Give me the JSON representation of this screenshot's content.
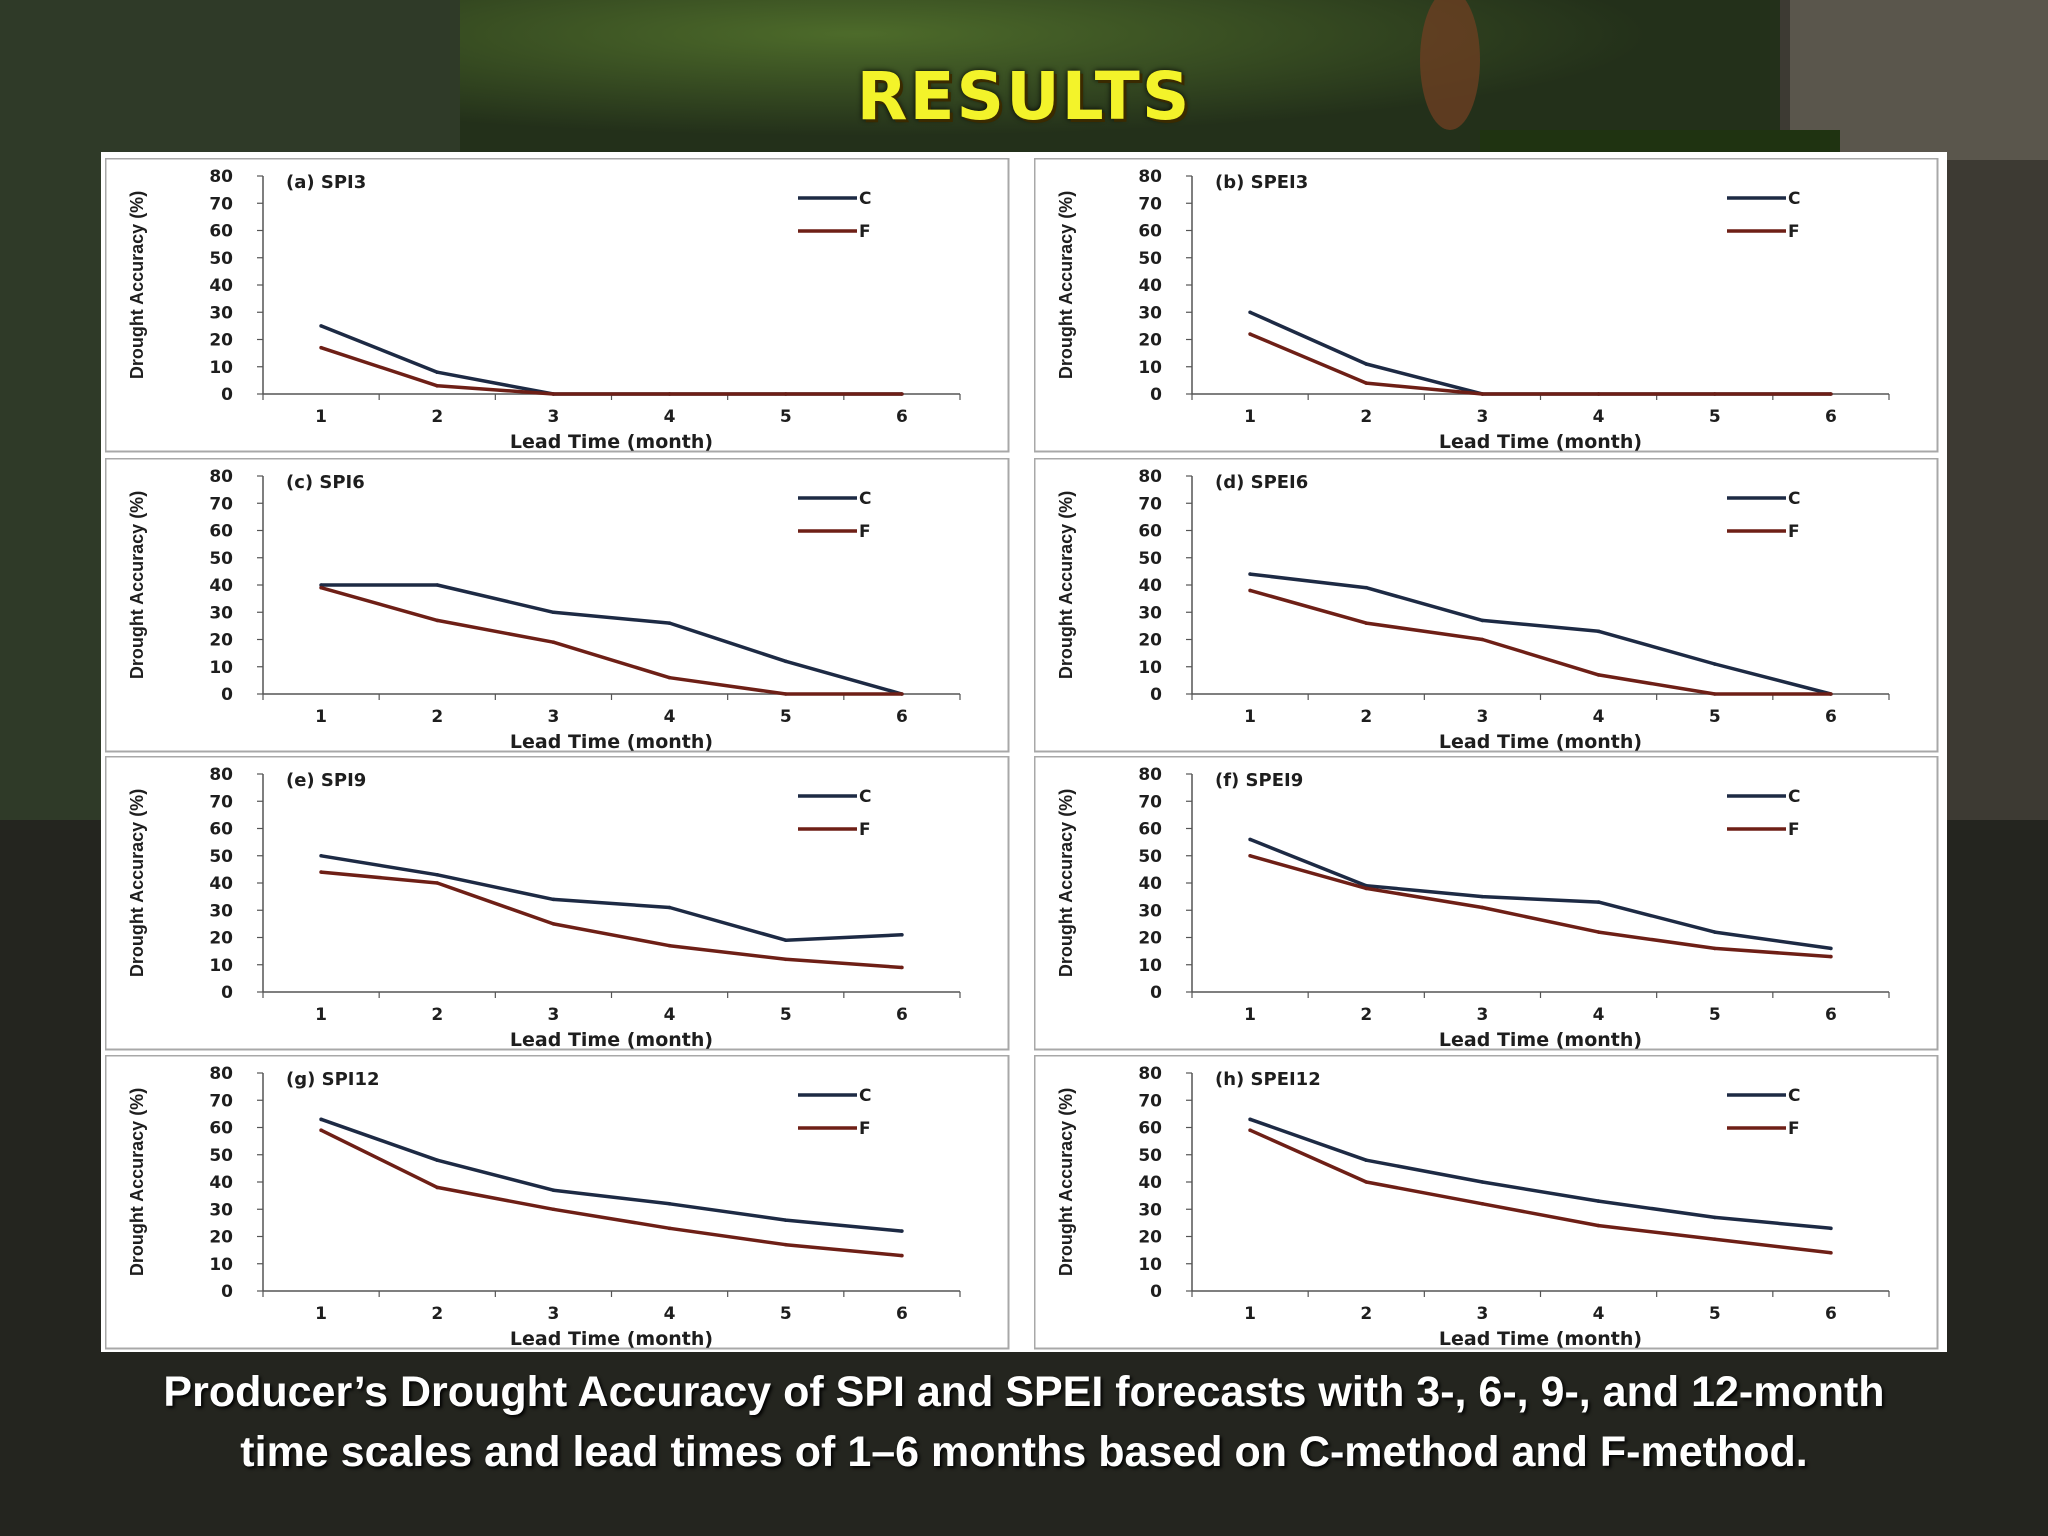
{
  "slide_title": "RESULTS",
  "caption": {
    "line1": "Producer’s Drought Accuracy of SPI and SPEI forecasts with 3-, 6-, 9-, and 12-month",
    "line2": "time scales and lead times of 1–6 months based on C-method and F-method."
  },
  "colors": {
    "C": "#1d2a44",
    "F": "#6e1f16",
    "title": "#f3f32a"
  },
  "chart_data": [
    {
      "type": "line",
      "title": "(a) SPI3",
      "xlabel": "Lead Time (month)",
      "ylabel": "Drought Accuracy (%)",
      "x": [
        1,
        2,
        3,
        4,
        5,
        6
      ],
      "ylim": [
        0,
        80
      ],
      "yticks": [
        0,
        10,
        20,
        30,
        40,
        50,
        60,
        70,
        80
      ],
      "legend": "top-right",
      "series": [
        {
          "name": "C",
          "values": [
            25,
            8,
            0,
            0,
            0,
            0
          ]
        },
        {
          "name": "F",
          "values": [
            17,
            3,
            0,
            0,
            0,
            0
          ]
        }
      ]
    },
    {
      "type": "line",
      "title": "(b) SPEI3",
      "xlabel": "Lead Time (month)",
      "ylabel": "Drought Accuracy (%)",
      "x": [
        1,
        2,
        3,
        4,
        5,
        6
      ],
      "ylim": [
        0,
        80
      ],
      "yticks": [
        0,
        10,
        20,
        30,
        40,
        50,
        60,
        70,
        80
      ],
      "legend": "top-right",
      "series": [
        {
          "name": "C",
          "values": [
            30,
            11,
            0,
            0,
            0,
            0
          ]
        },
        {
          "name": "F",
          "values": [
            22,
            4,
            0,
            0,
            0,
            0
          ]
        }
      ]
    },
    {
      "type": "line",
      "title": "(c) SPI6",
      "xlabel": "Lead Time (month)",
      "ylabel": "Drought Accuracy (%)",
      "x": [
        1,
        2,
        3,
        4,
        5,
        6
      ],
      "ylim": [
        0,
        80
      ],
      "yticks": [
        0,
        10,
        20,
        30,
        40,
        50,
        60,
        70,
        80
      ],
      "legend": "top-right",
      "series": [
        {
          "name": "C",
          "values": [
            40,
            40,
            30,
            26,
            12,
            0
          ]
        },
        {
          "name": "F",
          "values": [
            39,
            27,
            19,
            6,
            0,
            0
          ]
        }
      ]
    },
    {
      "type": "line",
      "title": "(d) SPEI6",
      "xlabel": "Lead Time (month)",
      "ylabel": "Drought Accuracy (%)",
      "x": [
        1,
        2,
        3,
        4,
        5,
        6
      ],
      "ylim": [
        0,
        80
      ],
      "yticks": [
        0,
        10,
        20,
        30,
        40,
        50,
        60,
        70,
        80
      ],
      "legend": "top-right",
      "series": [
        {
          "name": "C",
          "values": [
            44,
            39,
            27,
            23,
            11,
            0
          ]
        },
        {
          "name": "F",
          "values": [
            38,
            26,
            20,
            7,
            0,
            0
          ]
        }
      ]
    },
    {
      "type": "line",
      "title": "(e) SPI9",
      "xlabel": "Lead Time (month)",
      "ylabel": "Drought Accuracy (%)",
      "x": [
        1,
        2,
        3,
        4,
        5,
        6
      ],
      "ylim": [
        0,
        80
      ],
      "yticks": [
        0,
        10,
        20,
        30,
        40,
        50,
        60,
        70,
        80
      ],
      "legend": "top-right",
      "series": [
        {
          "name": "C",
          "values": [
            50,
            43,
            34,
            31,
            19,
            21
          ]
        },
        {
          "name": "F",
          "values": [
            44,
            40,
            25,
            17,
            12,
            9
          ]
        }
      ]
    },
    {
      "type": "line",
      "title": "(f) SPEI9",
      "xlabel": "Lead Time (month)",
      "ylabel": "Drought Accuracy (%)",
      "x": [
        1,
        2,
        3,
        4,
        5,
        6
      ],
      "ylim": [
        0,
        80
      ],
      "yticks": [
        0,
        10,
        20,
        30,
        40,
        50,
        60,
        70,
        80
      ],
      "legend": "top-right",
      "series": [
        {
          "name": "C",
          "values": [
            56,
            39,
            35,
            33,
            22,
            16
          ]
        },
        {
          "name": "F",
          "values": [
            50,
            38,
            31,
            22,
            16,
            13
          ]
        }
      ]
    },
    {
      "type": "line",
      "title": "(g) SPI12",
      "xlabel": "Lead Time (month)",
      "ylabel": "Drought Accuracy (%)",
      "x": [
        1,
        2,
        3,
        4,
        5,
        6
      ],
      "ylim": [
        0,
        80
      ],
      "yticks": [
        0,
        10,
        20,
        30,
        40,
        50,
        60,
        70,
        80
      ],
      "legend": "top-right",
      "series": [
        {
          "name": "C",
          "values": [
            63,
            48,
            37,
            32,
            26,
            22
          ]
        },
        {
          "name": "F",
          "values": [
            59,
            38,
            30,
            23,
            17,
            13
          ]
        }
      ]
    },
    {
      "type": "line",
      "title": "(h) SPEI12",
      "xlabel": "Lead Time (month)",
      "ylabel": "Drought Accuracy (%)",
      "x": [
        1,
        2,
        3,
        4,
        5,
        6
      ],
      "ylim": [
        0,
        80
      ],
      "yticks": [
        0,
        10,
        20,
        30,
        40,
        50,
        60,
        70,
        80
      ],
      "legend": "top-right",
      "series": [
        {
          "name": "C",
          "values": [
            63,
            48,
            40,
            33,
            27,
            23
          ]
        },
        {
          "name": "F",
          "values": [
            59,
            40,
            32,
            24,
            19,
            14
          ]
        }
      ]
    }
  ]
}
